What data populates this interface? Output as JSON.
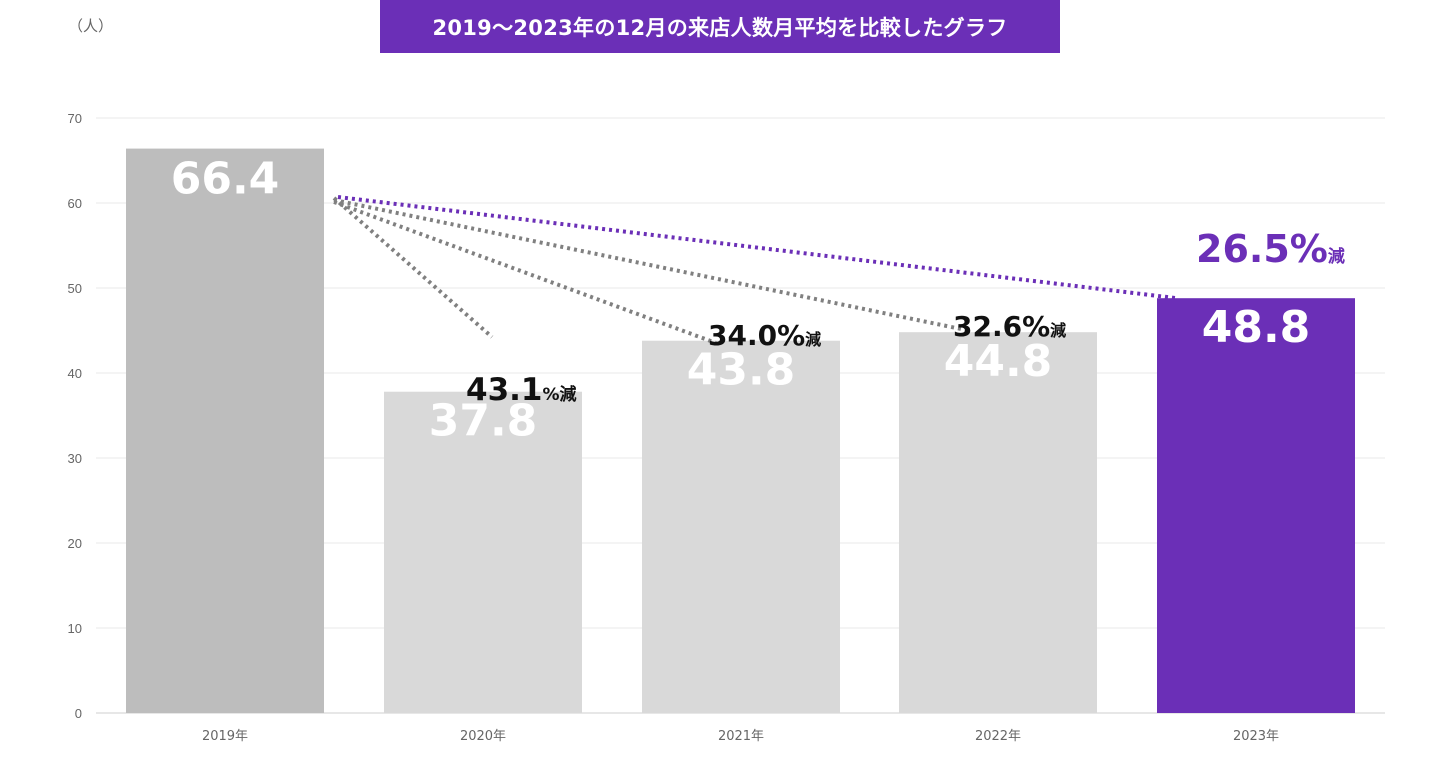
{
  "header": {
    "title": "2019〜2023年の12月の来店人数月平均を比較したグラフ",
    "unit": "（人）"
  },
  "colors": {
    "accent": "#6b2fb7",
    "bar_2019": "#bdbdbd",
    "bar_mid": "#d9d9d9",
    "bar_2023": "#6b2fb7",
    "dotted_gray": "#808080"
  },
  "chart_data": {
    "type": "bar",
    "title": "2019〜2023年の12月の来店人数月平均を比較したグラフ",
    "ylabel": "（人）",
    "xlabel": "",
    "categories": [
      "2019年",
      "2020年",
      "2021年",
      "2022年",
      "2023年"
    ],
    "values": [
      66.4,
      37.8,
      43.8,
      44.8,
      48.8
    ],
    "value_labels": [
      "66.4",
      "37.8",
      "43.8",
      "44.8",
      "48.8"
    ],
    "ylim": [
      0,
      70
    ],
    "yticks": [
      0,
      10,
      20,
      30,
      40,
      50,
      60,
      70
    ],
    "grid": true,
    "annotations": [
      {
        "target": "2020年",
        "value": "43.1",
        "suffix": "%減"
      },
      {
        "target": "2021年",
        "value": "34.0%",
        "suffix": "減"
      },
      {
        "target": "2022年",
        "value": "32.6%",
        "suffix": "減"
      },
      {
        "target": "2023年",
        "value": "26.5%",
        "suffix": "減"
      }
    ]
  }
}
